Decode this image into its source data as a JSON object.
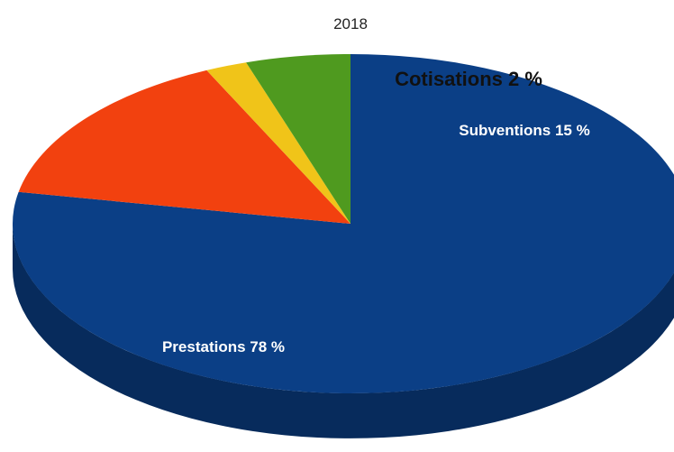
{
  "chart_data": {
    "type": "pie",
    "title": "2018",
    "three_d": true,
    "slices": [
      {
        "label": "Prestations 78 %",
        "value": 78,
        "color": "#0b3f86",
        "side_color": "#072b5c",
        "label_color": "#ffffff"
      },
      {
        "label": "Subventions 15 %",
        "value": 15,
        "color": "#f2410f",
        "side_color": "#b5300b",
        "label_color": "#ffffff"
      },
      {
        "label": "Cotisations 2 %",
        "value": 2,
        "color": "#f0c419",
        "side_color": "#b89310",
        "label_color": "#111111"
      },
      {
        "label": "",
        "value": 5,
        "color": "#4f9a1f",
        "side_color": "#3a7316",
        "label_color": "#111111"
      }
    ]
  }
}
